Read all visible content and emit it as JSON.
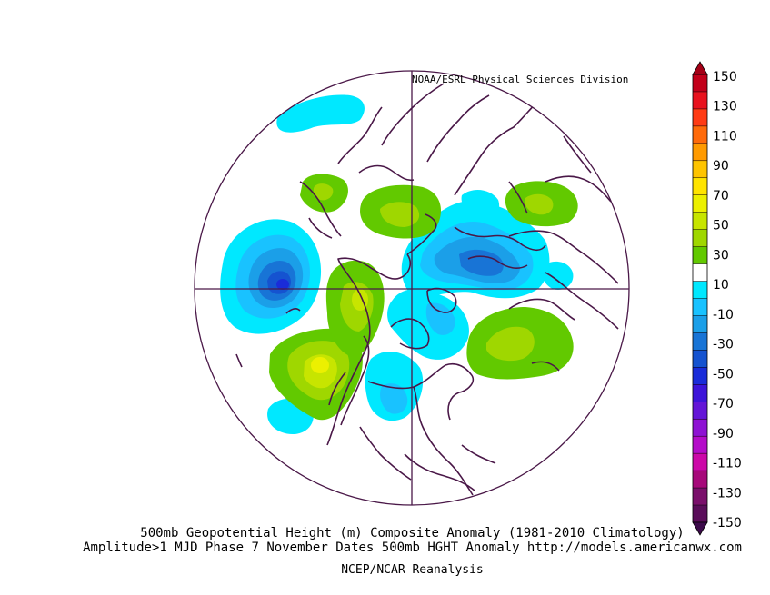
{
  "credit": "NOAA/ESRL Physical Sciences Division",
  "caption": {
    "line1": "500mb Geopotential Height (m) Composite Anomaly (1981-2010 Climatology)",
    "line2": "Amplitude>1 MJD Phase 7 November Dates 500mb HGHT Anomaly http://models.americanwx.com",
    "line3": "NCEP/NCAR Reanalysis"
  },
  "colorbar": {
    "labels": [
      "150",
      "130",
      "110",
      "90",
      "70",
      "50",
      "30",
      "10",
      "-10",
      "-30",
      "-50",
      "-70",
      "-90",
      "-110",
      "-130",
      "-150"
    ],
    "colors": [
      "#c2001a",
      "#e8121e",
      "#ff3b14",
      "#ff6a0a",
      "#ff9a00",
      "#ffc400",
      "#ffe400",
      "#ecf000",
      "#c7e500",
      "#9fd700",
      "#62c900",
      "#ffffff",
      "#00e8ff",
      "#19c2ff",
      "#1b9fe8",
      "#1874d6",
      "#1553d0",
      "#1a2cd9",
      "#3d14d9",
      "#6415d7",
      "#8e12d3",
      "#b40cc9",
      "#cc08a8",
      "#a6087a",
      "#7a0f6b",
      "#5a0d5a"
    ]
  },
  "legend_colors": {
    "top_arrow": "#a40016",
    "bottom_arrow": "#3c0a4a"
  }
}
